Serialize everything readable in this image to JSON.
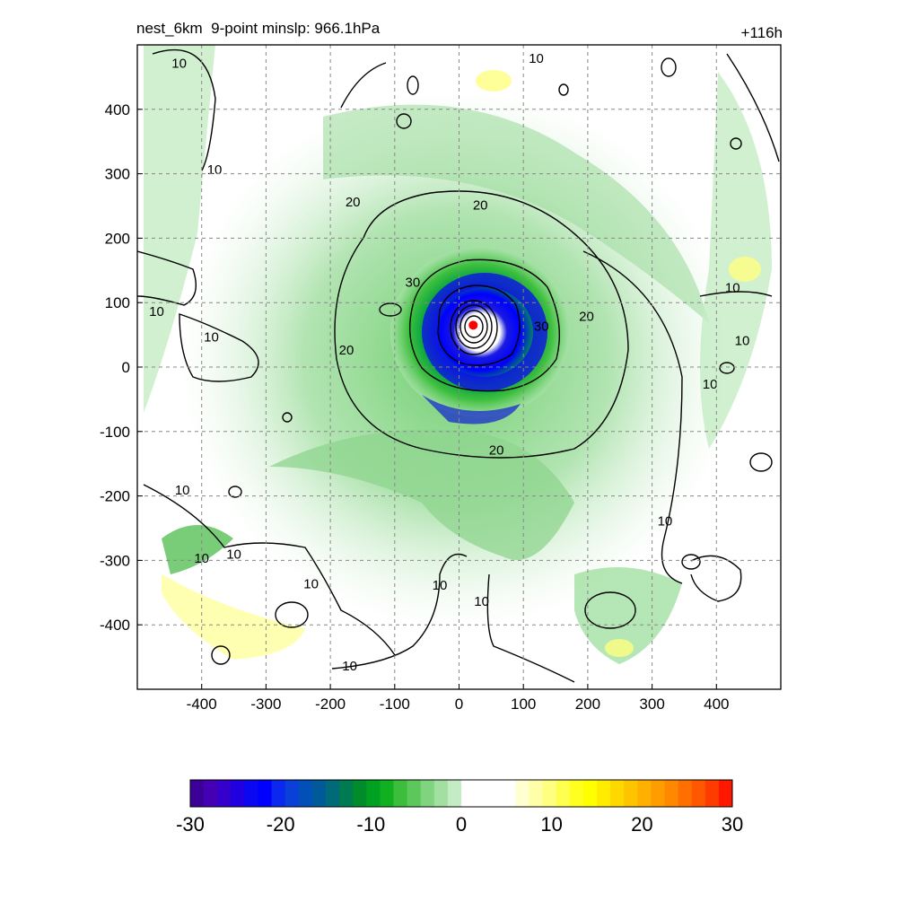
{
  "header": {
    "title": "nest_6km  9-point minslp: 966.1hPa",
    "forecast_hour": "+116h"
  },
  "chart_data": {
    "type": "heatmap",
    "title": "nest_6km  9-point minslp: 966.1hPa",
    "time_label": "+116h",
    "xlim": [
      -500,
      500
    ],
    "ylim": [
      -500,
      500
    ],
    "x_ticks": [
      -400,
      -300,
      -200,
      -100,
      0,
      100,
      200,
      300,
      400
    ],
    "y_ticks": [
      400,
      300,
      200,
      100,
      0,
      -100,
      -200,
      -300,
      -400
    ],
    "grid": true,
    "center_marker": {
      "x": 22,
      "y": 65,
      "color": "#ff0000"
    },
    "contour_levels": [
      10,
      20,
      30
    ],
    "contour_labels": [
      {
        "text": "10",
        "x": -435,
        "y": 470
      },
      {
        "text": "10",
        "x": -380,
        "y": 305
      },
      {
        "text": "10",
        "x": -470,
        "y": 85
      },
      {
        "text": "10",
        "x": -385,
        "y": 45
      },
      {
        "text": "20",
        "x": -165,
        "y": 255
      },
      {
        "text": "20",
        "x": 33,
        "y": 250
      },
      {
        "text": "20",
        "x": -175,
        "y": 25
      },
      {
        "text": "20",
        "x": 58,
        "y": -130
      },
      {
        "text": "20",
        "x": 198,
        "y": 77
      },
      {
        "text": "30",
        "x": -72,
        "y": 130
      },
      {
        "text": "30",
        "x": 128,
        "y": 62
      },
      {
        "text": "10",
        "x": 120,
        "y": 478
      },
      {
        "text": "10",
        "x": 425,
        "y": 122
      },
      {
        "text": "10",
        "x": 440,
        "y": 40
      },
      {
        "text": "10",
        "x": 390,
        "y": -28
      },
      {
        "text": "10",
        "x": -430,
        "y": -192
      },
      {
        "text": "10",
        "x": -400,
        "y": -298
      },
      {
        "text": "10",
        "x": -350,
        "y": -292
      },
      {
        "text": "10",
        "x": -230,
        "y": -338
      },
      {
        "text": "10",
        "x": -30,
        "y": -340
      },
      {
        "text": "10",
        "x": 35,
        "y": -365
      },
      {
        "text": "10",
        "x": 320,
        "y": -240
      },
      {
        "text": "10",
        "x": -170,
        "y": -465
      }
    ],
    "colorbar": {
      "range": [
        -30,
        30
      ],
      "ticks": [
        -30,
        -20,
        -10,
        0,
        10,
        20,
        30
      ],
      "colors": [
        "#3a0098",
        "#4600b4",
        "#3500cc",
        "#2000e0",
        "#0a08f0",
        "#0000ff",
        "#0a28ee",
        "#0a40d8",
        "#0050b8",
        "#005a98",
        "#006a78",
        "#007a50",
        "#008c2a",
        "#00a020",
        "#10b020",
        "#3cbe3c",
        "#5cc85c",
        "#80d480",
        "#a2e0a2",
        "#c4ecc4",
        "#ffffff",
        "#ffffff",
        "#ffffff",
        "#ffffff",
        "#ffffd0",
        "#ffffa8",
        "#ffff80",
        "#ffff50",
        "#ffff20",
        "#ffff00",
        "#ffec00",
        "#ffd800",
        "#ffc400",
        "#ffb000",
        "#ff9c00",
        "#ff8800",
        "#ff7000",
        "#ff5800",
        "#ff3c00",
        "#ff1800"
      ]
    }
  }
}
